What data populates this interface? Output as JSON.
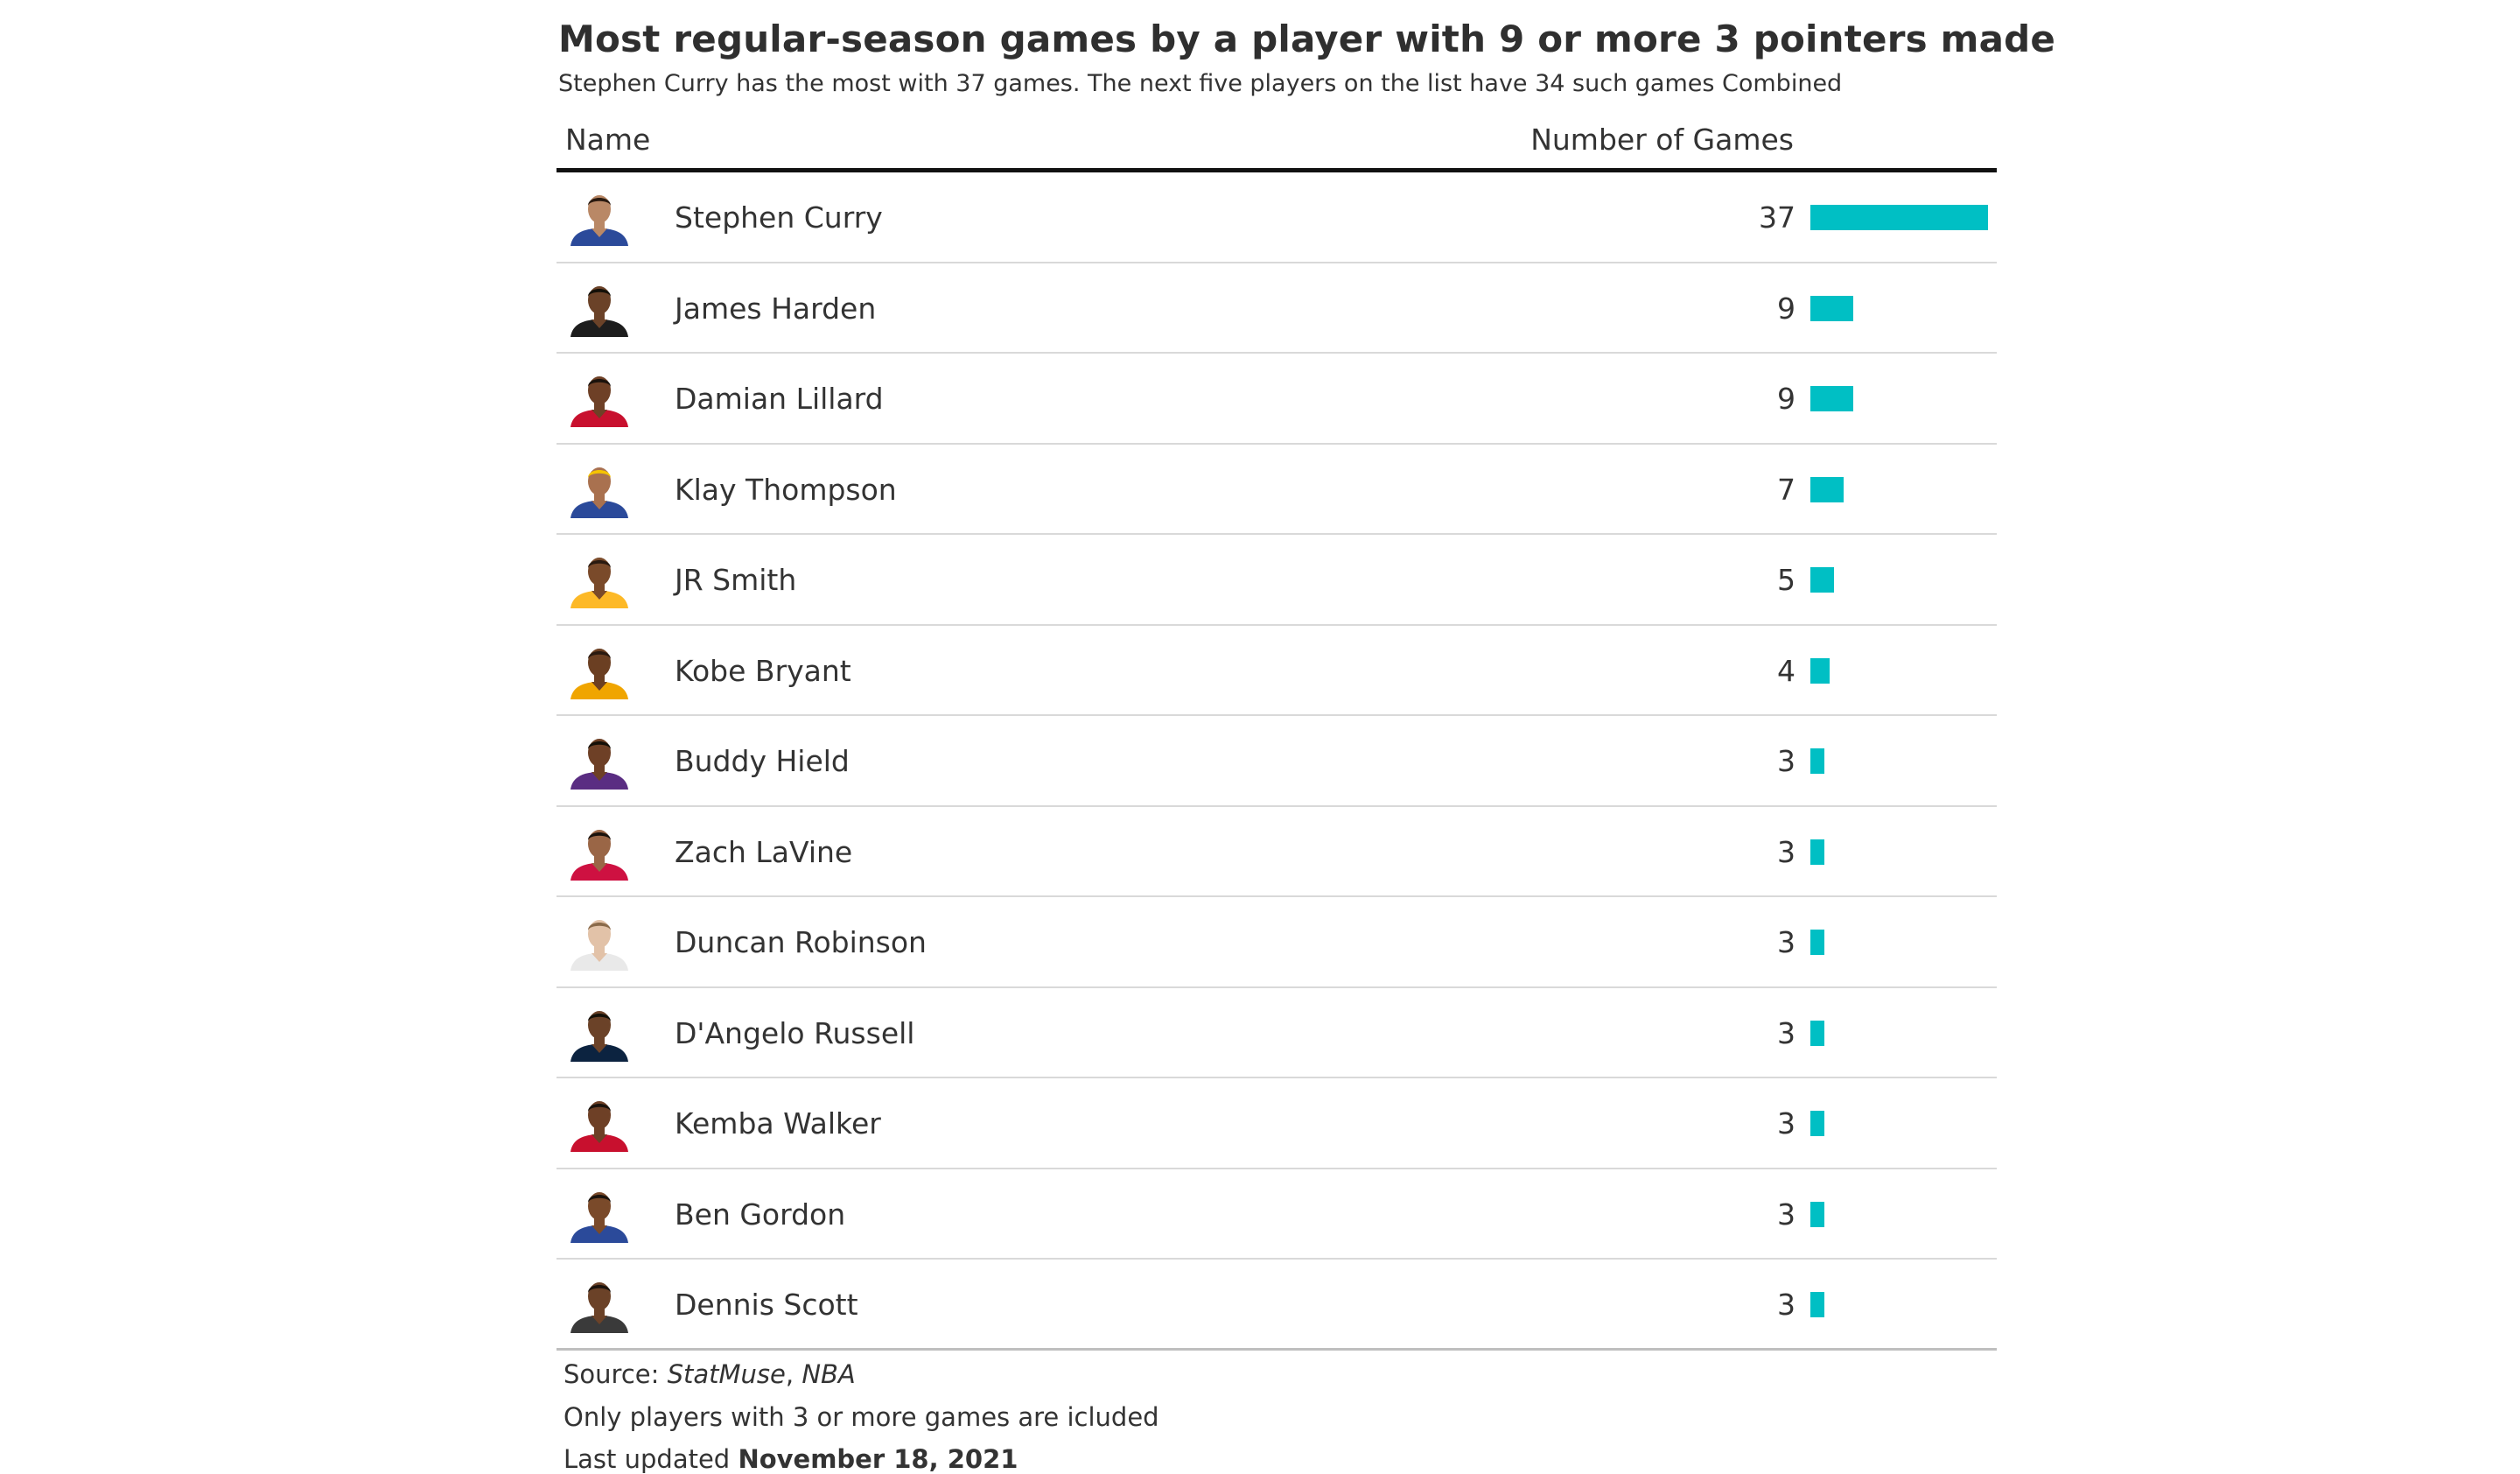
{
  "chart_data": {
    "type": "table",
    "title": "Most regular-season games by a player with 9 or more 3 pointers made",
    "subtitle": "Stephen Curry has the most with 37 games. The next five players on the list have 34 such games Combined",
    "columns": [
      "Name",
      "Number of Games"
    ],
    "bar_max": 37,
    "bar_color": "#00bfc4",
    "rows": [
      {
        "name": "Stephen Curry",
        "games": 37,
        "skin": "#b98866",
        "jersey": "#2b4a9a",
        "hair": "#2a1a10"
      },
      {
        "name": "James Harden",
        "games": 9,
        "skin": "#6b4228",
        "jersey": "#1d1d1d",
        "hair": "#141008"
      },
      {
        "name": "Damian Lillard",
        "games": 9,
        "skin": "#6e4026",
        "jersey": "#c8102e",
        "hair": "#1a120c"
      },
      {
        "name": "Klay Thompson",
        "games": 7,
        "skin": "#a9714f",
        "jersey": "#2b4a9a",
        "hair": "#f5c400"
      },
      {
        "name": "JR Smith",
        "games": 5,
        "skin": "#7a4a2a",
        "jersey": "#fdb927",
        "hair": "#2a1a10"
      },
      {
        "name": "Kobe Bryant",
        "games": 4,
        "skin": "#6b3f22",
        "jersey": "#f0a500",
        "hair": "#2a1a10"
      },
      {
        "name": "Buddy Hield",
        "games": 3,
        "skin": "#6e4026",
        "jersey": "#5a2d82",
        "hair": "#141008"
      },
      {
        "name": "Zach LaVine",
        "games": 3,
        "skin": "#9a6646",
        "jersey": "#ce1141",
        "hair": "#1a120c"
      },
      {
        "name": "Duncan Robinson",
        "games": 3,
        "skin": "#e2c2a8",
        "jersey": "#e9e9e9",
        "hair": "#8a6a4a"
      },
      {
        "name": "D'Angelo Russell",
        "games": 3,
        "skin": "#6b4228",
        "jersey": "#0c2340",
        "hair": "#141008"
      },
      {
        "name": "Kemba Walker",
        "games": 3,
        "skin": "#6e4026",
        "jersey": "#c8102e",
        "hair": "#1a120c"
      },
      {
        "name": "Ben Gordon",
        "games": 3,
        "skin": "#7a4a2a",
        "jersey": "#2b4a9a",
        "hair": "#1a120c"
      },
      {
        "name": "Dennis Scott",
        "games": 3,
        "skin": "#6b4228",
        "jersey": "#3a3a3a",
        "hair": "#1a120c"
      }
    ]
  },
  "footer": {
    "source_label": "Source: ",
    "source_a": "StatMuse",
    "source_sep": ", ",
    "source_b": "NBA",
    "note": "Only players with 3 or more games are icluded",
    "updated_label": "Last updated ",
    "updated_date": "November 18, 2021"
  }
}
